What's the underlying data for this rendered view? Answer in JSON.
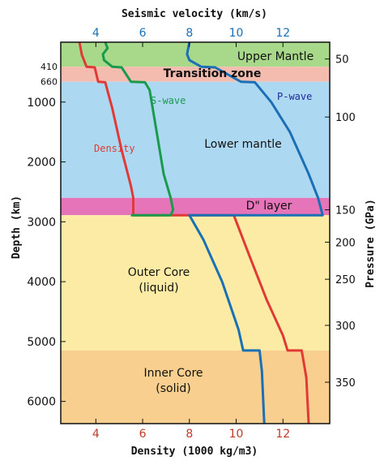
{
  "chart_data": {
    "type": "line",
    "title": "Seismic velocity (km/s)",
    "xlabel": "Density (1000 kg/m3)",
    "ylabel": "Depth (km)",
    "y2label": "Pressure (GPa)",
    "xlim": [
      2.5,
      14.0
    ],
    "ylim": [
      0,
      6371
    ],
    "x_ticks_top": [
      "4",
      "6",
      "8",
      "10",
      "12"
    ],
    "x_ticks_bottom": [
      "4",
      "6",
      "8",
      "10",
      "12"
    ],
    "y_ticks_left": [
      "1000",
      "2000",
      "3000",
      "4000",
      "5000",
      "6000"
    ],
    "y_small_labels": [
      "410",
      "660"
    ],
    "y_ticks_right": [
      "50",
      "100",
      "150",
      "200",
      "250",
      "300",
      "350"
    ],
    "pressure_depths": [
      280,
      1250,
      2800,
      3340,
      3960,
      4730,
      5680
    ],
    "layers": [
      {
        "name": "Upper Mantle",
        "from": 0,
        "to": 410,
        "color": "#a8d88a"
      },
      {
        "name": "Transition zone",
        "from": 410,
        "to": 660,
        "color": "#f4bcae"
      },
      {
        "name": "Lower mantle",
        "from": 660,
        "to": 2600,
        "color": "#add8f2"
      },
      {
        "name": "D\" layer",
        "from": 2600,
        "to": 2890,
        "color": "#e574b8"
      },
      {
        "name": "Outer Core",
        "sub": "(liquid)",
        "from": 2890,
        "to": 5150,
        "color": "#fbeba4"
      },
      {
        "name": "Inner Core",
        "sub": "(solid)",
        "from": 5150,
        "to": 6371,
        "color": "#f8cf8e"
      }
    ],
    "series": [
      {
        "name": "Density",
        "color": "#e03a36",
        "points": [
          [
            3.3,
            0
          ],
          [
            3.4,
            210
          ],
          [
            3.6,
            410
          ],
          [
            3.95,
            420
          ],
          [
            4.1,
            660
          ],
          [
            4.4,
            670
          ],
          [
            4.7,
            1100
          ],
          [
            5.1,
            1800
          ],
          [
            5.5,
            2400
          ],
          [
            5.6,
            2600
          ],
          [
            5.6,
            2890
          ],
          [
            9.9,
            2890
          ],
          [
            10.6,
            3600
          ],
          [
            11.3,
            4300
          ],
          [
            12.0,
            4900
          ],
          [
            12.2,
            5150
          ],
          [
            12.8,
            5150
          ],
          [
            13.0,
            5600
          ],
          [
            13.1,
            6371
          ]
        ]
      },
      {
        "name": "S-wave",
        "color": "#1a9a4c",
        "points": [
          [
            4.4,
            0
          ],
          [
            4.5,
            100
          ],
          [
            4.3,
            200
          ],
          [
            4.35,
            300
          ],
          [
            4.7,
            410
          ],
          [
            5.1,
            420
          ],
          [
            5.5,
            660
          ],
          [
            6.1,
            670
          ],
          [
            6.3,
            800
          ],
          [
            6.6,
            1500
          ],
          [
            6.9,
            2200
          ],
          [
            7.2,
            2600
          ],
          [
            7.3,
            2800
          ],
          [
            7.2,
            2890
          ],
          [
            5.5,
            2890
          ]
        ]
      },
      {
        "name": "P-wave",
        "color": "#1a6fb5",
        "points": [
          [
            8.0,
            0
          ],
          [
            7.9,
            200
          ],
          [
            8.0,
            300
          ],
          [
            8.5,
            410
          ],
          [
            9.1,
            420
          ],
          [
            10.2,
            660
          ],
          [
            10.8,
            670
          ],
          [
            11.5,
            1000
          ],
          [
            12.3,
            1500
          ],
          [
            13.1,
            2200
          ],
          [
            13.5,
            2600
          ],
          [
            13.7,
            2890
          ],
          [
            8.0,
            2890
          ],
          [
            8.6,
            3300
          ],
          [
            9.4,
            4000
          ],
          [
            10.1,
            4800
          ],
          [
            10.3,
            5150
          ],
          [
            11.0,
            5150
          ],
          [
            11.1,
            5500
          ],
          [
            11.2,
            6371
          ]
        ]
      }
    ]
  }
}
